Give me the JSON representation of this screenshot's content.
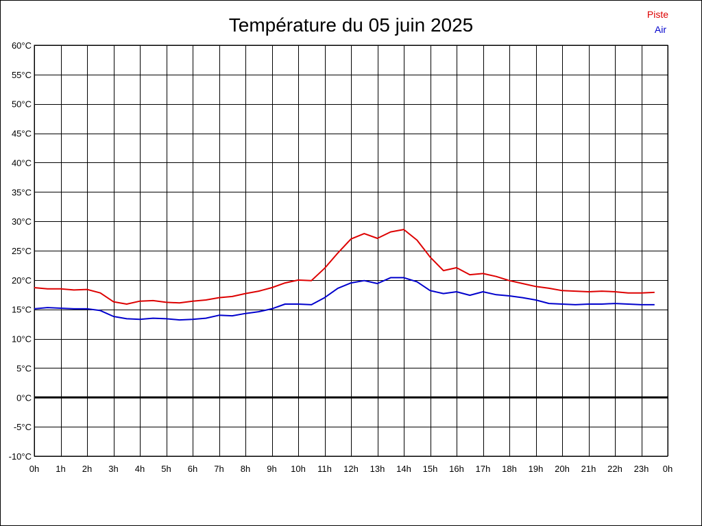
{
  "chart_data": {
    "type": "line",
    "title": "Température du 05 juin 2025",
    "xlabel": "",
    "ylabel": "",
    "ylim": [
      -10,
      60
    ],
    "xlim": [
      0,
      24
    ],
    "y_step": 5,
    "y_unit": "°C",
    "x_unit": "h",
    "x_ticks": [
      "0h",
      "1h",
      "2h",
      "3h",
      "4h",
      "5h",
      "6h",
      "7h",
      "8h",
      "9h",
      "10h",
      "11h",
      "12h",
      "13h",
      "14h",
      "15h",
      "16h",
      "17h",
      "18h",
      "19h",
      "20h",
      "21h",
      "22h",
      "23h",
      "0h"
    ],
    "y_ticks": [
      "60°C",
      "55°C",
      "50°C",
      "45°C",
      "40°C",
      "35°C",
      "30°C",
      "25°C",
      "20°C",
      "15°C",
      "10°C",
      "5°C",
      "0°C",
      "-5°C",
      "-10°C"
    ],
    "grid": true,
    "zero_line": true,
    "legend_position": "top-right",
    "x": [
      0,
      0.5,
      1,
      1.5,
      2,
      2.5,
      3,
      3.5,
      4,
      4.5,
      5,
      5.5,
      6,
      6.5,
      7,
      7.5,
      8,
      8.5,
      9,
      9.5,
      10,
      10.5,
      11,
      11.5,
      12,
      12.5,
      13,
      13.5,
      14,
      14.5,
      15,
      15.5,
      16,
      16.5,
      17,
      17.5,
      18,
      18.5,
      19,
      19.5,
      20,
      20.5,
      21,
      21.5,
      22,
      22.5,
      23,
      23.5
    ],
    "series": [
      {
        "name": "Piste",
        "color": "#dd0000",
        "values": [
          18.7,
          18.5,
          18.5,
          18.3,
          18.4,
          17.8,
          16.3,
          15.9,
          16.4,
          16.5,
          16.2,
          16.1,
          16.4,
          16.6,
          17.0,
          17.2,
          17.7,
          18.1,
          18.7,
          19.5,
          20.0,
          19.9,
          22.0,
          24.6,
          27.0,
          27.9,
          27.1,
          28.2,
          28.6,
          26.8,
          23.9,
          21.6,
          22.1,
          20.9,
          21.1,
          20.6,
          19.9,
          19.4,
          18.9,
          18.6,
          18.2,
          18.1,
          18.0,
          18.1,
          18.0,
          17.8,
          17.8,
          17.9
        ]
      },
      {
        "name": "Air",
        "color": "#0000cc",
        "values": [
          15.1,
          15.3,
          15.2,
          15.1,
          15.1,
          14.8,
          13.8,
          13.4,
          13.3,
          13.5,
          13.4,
          13.2,
          13.3,
          13.5,
          14.0,
          13.9,
          14.3,
          14.6,
          15.1,
          15.9,
          15.9,
          15.8,
          17.0,
          18.6,
          19.5,
          19.9,
          19.4,
          20.4,
          20.4,
          19.7,
          18.2,
          17.7,
          18.0,
          17.4,
          18.0,
          17.5,
          17.3,
          17.0,
          16.6,
          16.0,
          15.9,
          15.8,
          15.9,
          15.9,
          16.0,
          15.9,
          15.8,
          15.8
        ]
      }
    ]
  }
}
